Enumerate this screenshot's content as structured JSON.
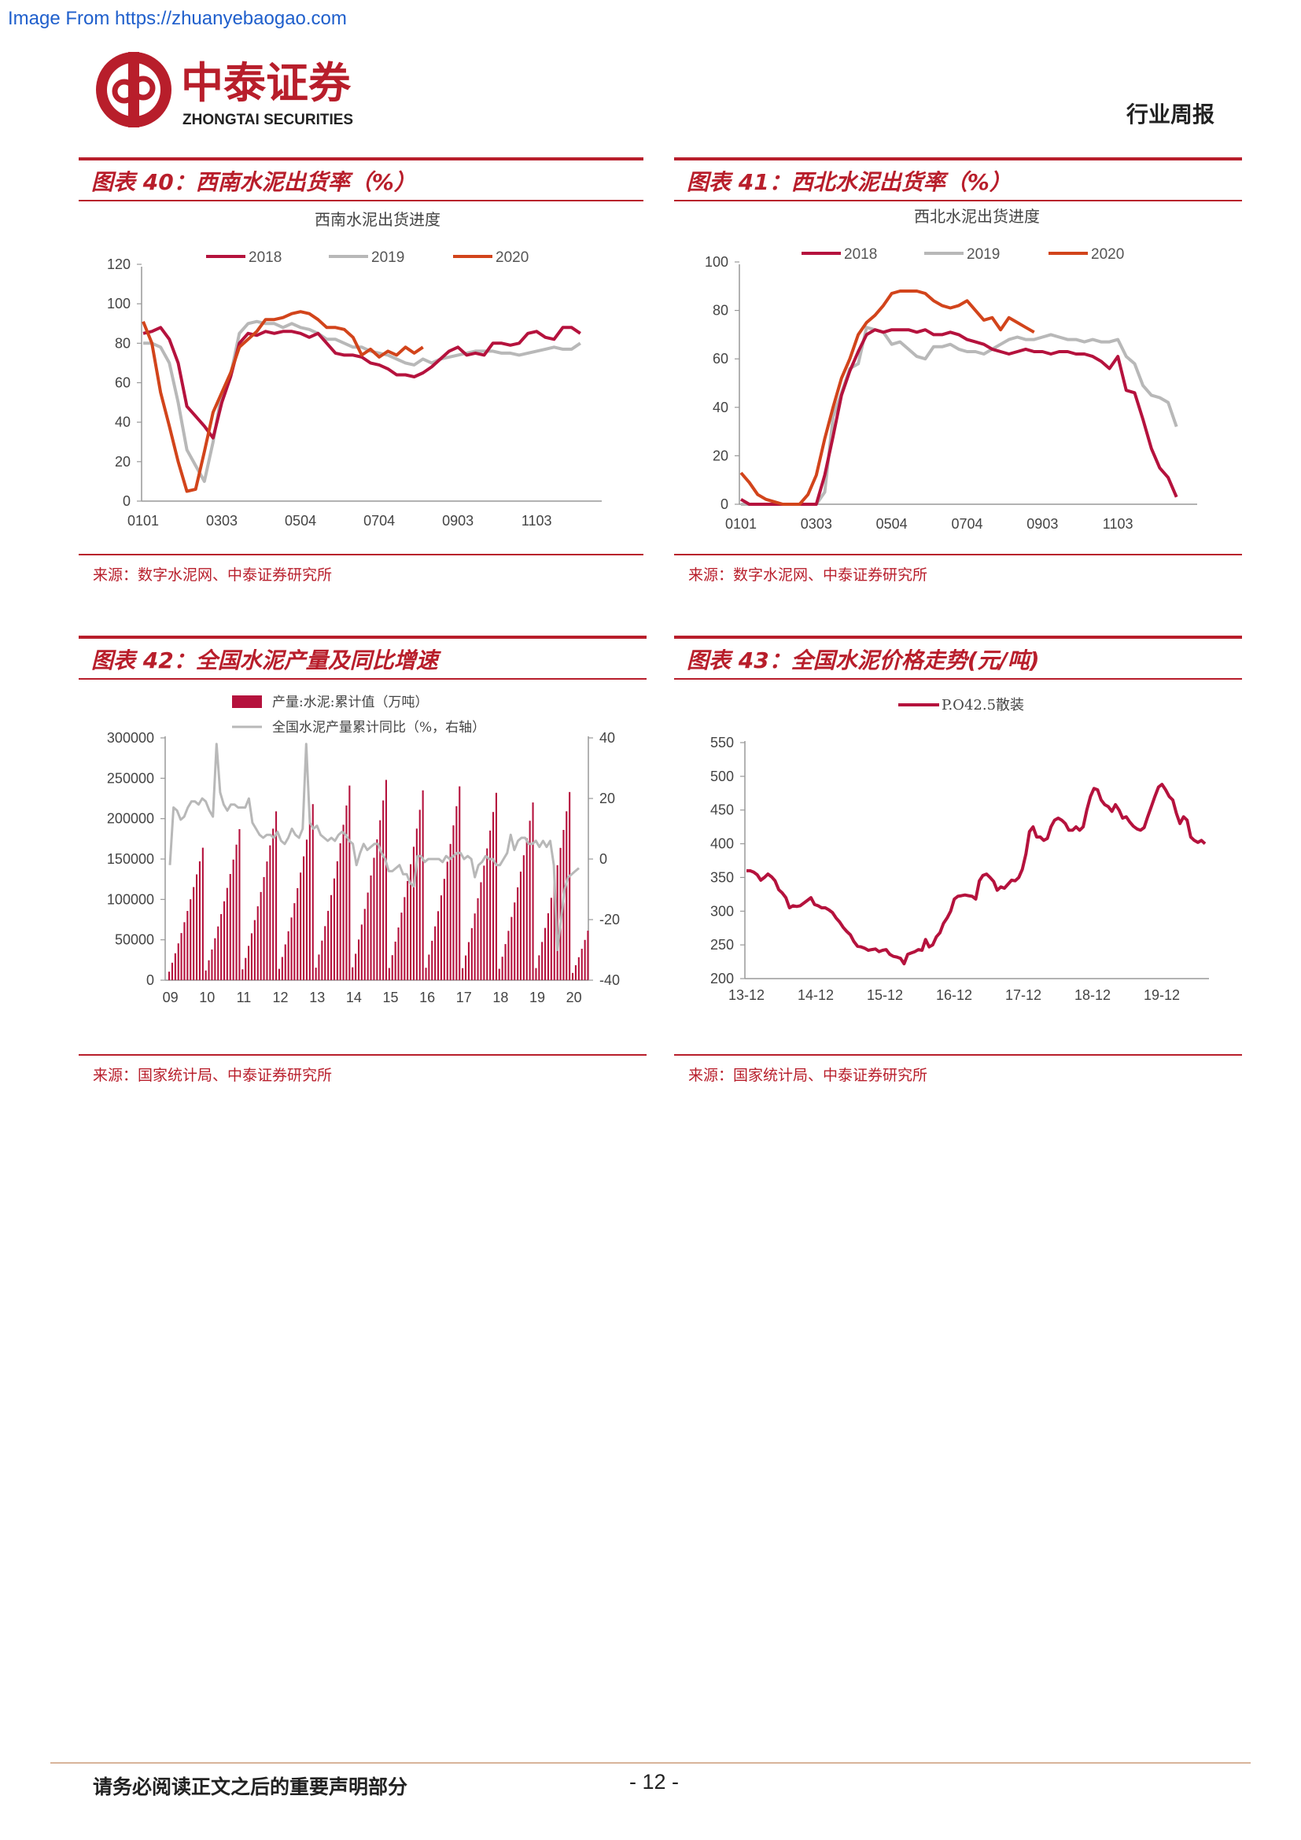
{
  "watermark": "Image From https://zhuanyebaogao.com",
  "header": {
    "logo_cn": "中泰证券",
    "logo_en": "ZHONGTAI SECURITIES",
    "report_type": "行业周报"
  },
  "colors": {
    "accent": "#b81e2b",
    "c2018": "#b5123d",
    "c2019": "#b8b8b8",
    "c2020": "#d2441b"
  },
  "figures": [
    {
      "title": "图表 40：西南水泥出货率（%）",
      "source": "来源：数字水泥网、中泰证券研究所"
    },
    {
      "title": "图表 41：西北水泥出货率（%）",
      "source": "来源：数字水泥网、中泰证券研究所"
    },
    {
      "title": "图表 42：全国水泥产量及同比增速",
      "source": "来源：国家统计局、中泰证券研究所"
    },
    {
      "title": "图表 43：全国水泥价格走势(元/吨)",
      "source": "来源：国家统计局、中泰证券研究所"
    }
  ],
  "chart_data": [
    {
      "type": "line",
      "title": "西南水泥出货进度",
      "x_ticks": [
        "0101",
        "0303",
        "0504",
        "0704",
        "0903",
        "1103"
      ],
      "ylim": [
        0,
        120
      ],
      "y_ticks": [
        "0",
        "20",
        "40",
        "60",
        "80",
        "100",
        "120"
      ],
      "series": [
        {
          "name": "2018",
          "values": [
            85,
            86,
            88,
            82,
            70,
            48,
            43,
            38,
            32,
            50,
            63,
            80,
            85,
            84,
            86,
            85,
            86,
            86,
            85,
            83,
            85,
            80,
            75,
            74,
            74,
            73,
            70,
            69,
            67,
            64,
            64,
            63,
            65,
            68,
            72,
            76,
            78,
            74,
            75,
            74,
            80,
            80,
            79,
            80,
            85,
            86,
            83,
            82,
            88,
            88,
            85
          ]
        },
        {
          "name": "2019",
          "values": [
            80,
            80,
            78,
            70,
            50,
            26,
            18,
            10,
            30,
            55,
            64,
            85,
            90,
            91,
            90,
            90,
            88,
            90,
            88,
            87,
            85,
            82,
            82,
            80,
            78,
            78,
            76,
            75,
            74,
            72,
            70,
            69,
            72,
            70,
            72,
            73,
            74,
            75,
            76,
            76,
            76,
            75,
            75,
            74,
            75,
            76,
            77,
            78,
            77,
            77,
            80
          ]
        },
        {
          "name": "2020",
          "values": [
            91,
            80,
            55,
            38,
            20,
            5,
            6,
            25,
            45,
            55,
            65,
            78,
            82,
            86,
            92,
            92,
            93,
            95,
            96,
            95,
            92,
            88,
            88,
            87,
            83,
            74,
            77,
            73,
            76,
            74,
            78,
            75,
            78
          ]
        }
      ]
    },
    {
      "type": "line",
      "title": "西北水泥出货进度",
      "x_ticks": [
        "0101",
        "0303",
        "0504",
        "0704",
        "0903",
        "1103"
      ],
      "ylim": [
        0,
        100
      ],
      "y_ticks": [
        "0",
        "20",
        "40",
        "60",
        "80",
        "100"
      ],
      "series": [
        {
          "name": "2018",
          "values": [
            2,
            0,
            0,
            0,
            0,
            0,
            0,
            0,
            0,
            0,
            12,
            28,
            45,
            55,
            63,
            70,
            72,
            71,
            72,
            72,
            72,
            71,
            72,
            70,
            70,
            71,
            70,
            68,
            67,
            66,
            64,
            63,
            62,
            63,
            64,
            63,
            63,
            62,
            63,
            63,
            62,
            62,
            61,
            59,
            56,
            61,
            47,
            46,
            35,
            23,
            15,
            11,
            3
          ]
        },
        {
          "name": "2019",
          "values": [
            0,
            0,
            0,
            0,
            0,
            0,
            0,
            0,
            0,
            0,
            5,
            36,
            46,
            56,
            58,
            73,
            72,
            71,
            66,
            67,
            64,
            61,
            60,
            65,
            65,
            66,
            64,
            63,
            63,
            62,
            64,
            66,
            68,
            69,
            68,
            68,
            69,
            70,
            69,
            68,
            68,
            67,
            68,
            67,
            67,
            68,
            61,
            58,
            49,
            45,
            44,
            42,
            32
          ]
        },
        {
          "name": "2020",
          "values": [
            13,
            9,
            4,
            2,
            1,
            0,
            0,
            0,
            4,
            12,
            27,
            40,
            52,
            60,
            70,
            75,
            78,
            82,
            87,
            88,
            88,
            88,
            87,
            84,
            82,
            81,
            82,
            84,
            80,
            76,
            77,
            72,
            77,
            75,
            73,
            71
          ]
        }
      ]
    },
    {
      "type": "bar+line",
      "legend": [
        "产量:水泥:累计值（万吨）",
        "全国水泥产量累计同比（%，右轴）"
      ],
      "x_ticks": [
        "09",
        "10",
        "11",
        "12",
        "13",
        "14",
        "15",
        "16",
        "17",
        "18",
        "19",
        "20"
      ],
      "y_left_ticks": [
        "0",
        "50000",
        "100000",
        "150000",
        "200000",
        "250000",
        "300000"
      ],
      "y_right_ticks": [
        "-40",
        "-20",
        "0",
        "20",
        "40"
      ],
      "ylim_left": [
        0,
        300000
      ],
      "ylim_right": [
        -40,
        40
      ],
      "annual_totals": [
        164000,
        187000,
        209000,
        218000,
        241000,
        248000,
        235000,
        240000,
        232000,
        220000,
        233000,
        140000
      ],
      "yoy": [
        -2,
        17,
        16,
        13,
        14,
        17,
        19,
        19,
        18,
        20,
        19,
        16,
        14,
        38,
        22,
        18,
        16,
        18,
        18,
        17,
        17,
        17,
        20,
        12,
        10,
        8,
        7,
        8,
        8,
        7,
        9,
        6,
        5,
        7,
        10,
        8,
        7,
        10,
        38,
        12,
        10,
        11,
        8,
        7,
        6,
        7,
        6,
        8,
        9,
        8,
        6,
        5,
        -2,
        2,
        5,
        3,
        4,
        5,
        5,
        2,
        0,
        -4,
        -4,
        -3,
        -2,
        -5,
        -5,
        -8,
        -9,
        1,
        1,
        -1,
        0,
        0,
        0,
        0,
        -1,
        1,
        0,
        1,
        2,
        2,
        0,
        1,
        0,
        -6,
        -2,
        -1,
        1,
        0,
        0,
        -2,
        -2,
        0,
        2,
        8,
        3,
        6,
        7,
        7,
        5,
        5,
        6,
        4,
        6,
        4,
        6,
        -2,
        -30,
        -20,
        -10,
        -6,
        -5,
        -4,
        -3
      ]
    },
    {
      "type": "line",
      "legend": [
        "P.O42.5散装"
      ],
      "x_ticks": [
        "13-12",
        "14-12",
        "15-12",
        "16-12",
        "17-12",
        "18-12",
        "19-12"
      ],
      "ylim": [
        200,
        550
      ],
      "y_ticks": [
        "200",
        "250",
        "300",
        "350",
        "400",
        "450",
        "500",
        "550"
      ],
      "values": [
        360,
        360,
        358,
        354,
        346,
        350,
        355,
        351,
        345,
        332,
        327,
        320,
        305,
        308,
        307,
        308,
        312,
        316,
        320,
        310,
        308,
        305,
        305,
        302,
        298,
        290,
        284,
        276,
        270,
        265,
        255,
        248,
        247,
        245,
        242,
        243,
        244,
        240,
        242,
        243,
        236,
        233,
        232,
        230,
        222,
        236,
        238,
        240,
        243,
        242,
        258,
        247,
        250,
        262,
        268,
        282,
        290,
        300,
        318,
        322,
        323,
        324,
        323,
        322,
        318,
        345,
        353,
        355,
        350,
        344,
        331,
        336,
        334,
        340,
        346,
        345,
        350,
        362,
        385,
        418,
        425,
        410,
        410,
        405,
        408,
        425,
        435,
        438,
        435,
        430,
        420,
        420,
        425,
        420,
        425,
        450,
        470,
        482,
        480,
        465,
        458,
        455,
        448,
        458,
        450,
        438,
        440,
        432,
        426,
        422,
        420,
        424,
        440,
        455,
        470,
        484,
        488,
        480,
        470,
        465,
        445,
        430,
        440,
        435,
        410,
        405,
        402,
        405,
        400
      ]
    }
  ],
  "footer": {
    "notice": "请务必阅读正文之后的重要声明部分",
    "page": "- 12 -"
  }
}
